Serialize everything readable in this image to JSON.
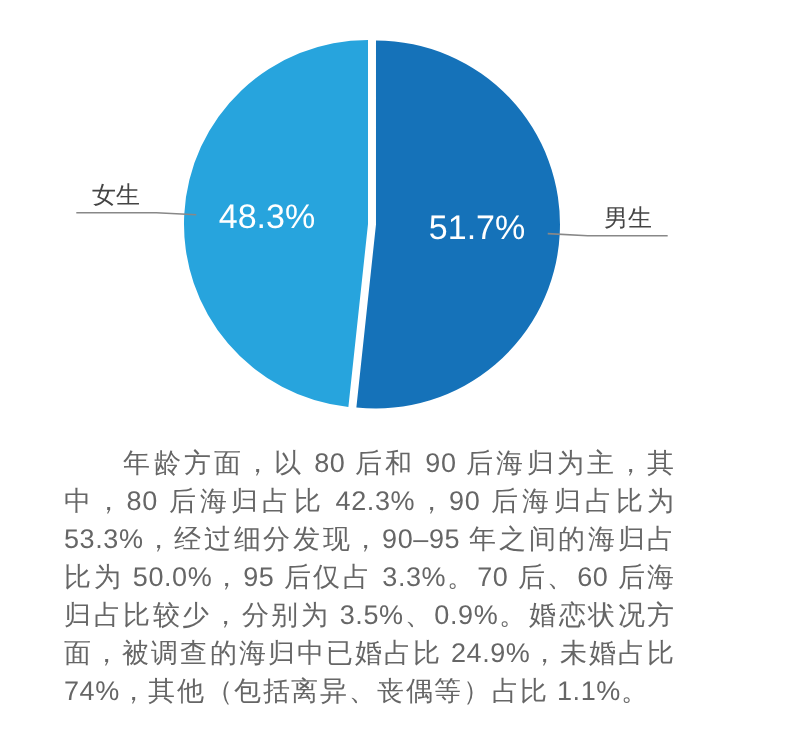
{
  "chart_data": {
    "type": "pie",
    "categories": [
      "男生",
      "女生"
    ],
    "values": [
      51.7,
      48.3
    ],
    "colors": [
      "#1572b9",
      "#27a4dd"
    ],
    "value_labels": [
      "51.7%",
      "48.3%"
    ],
    "annotations": [
      "年龄方面，以 80 后和 90 后海归为主，其中，80 后海归占比 42.3%，90 后海归占比为 53.3%，经过细分发现，90–95 年之间的海归占比为 50.0%，95 后仅占 3.3%。70 后、60 后海归占比较少，分别为 3.5%、0.9%。婚恋状况方面，被调查的海归中已婚占比 24.9%，未婚占比 74%，其他（包括离异、丧偶等）占比 1.1%。"
    ]
  }
}
